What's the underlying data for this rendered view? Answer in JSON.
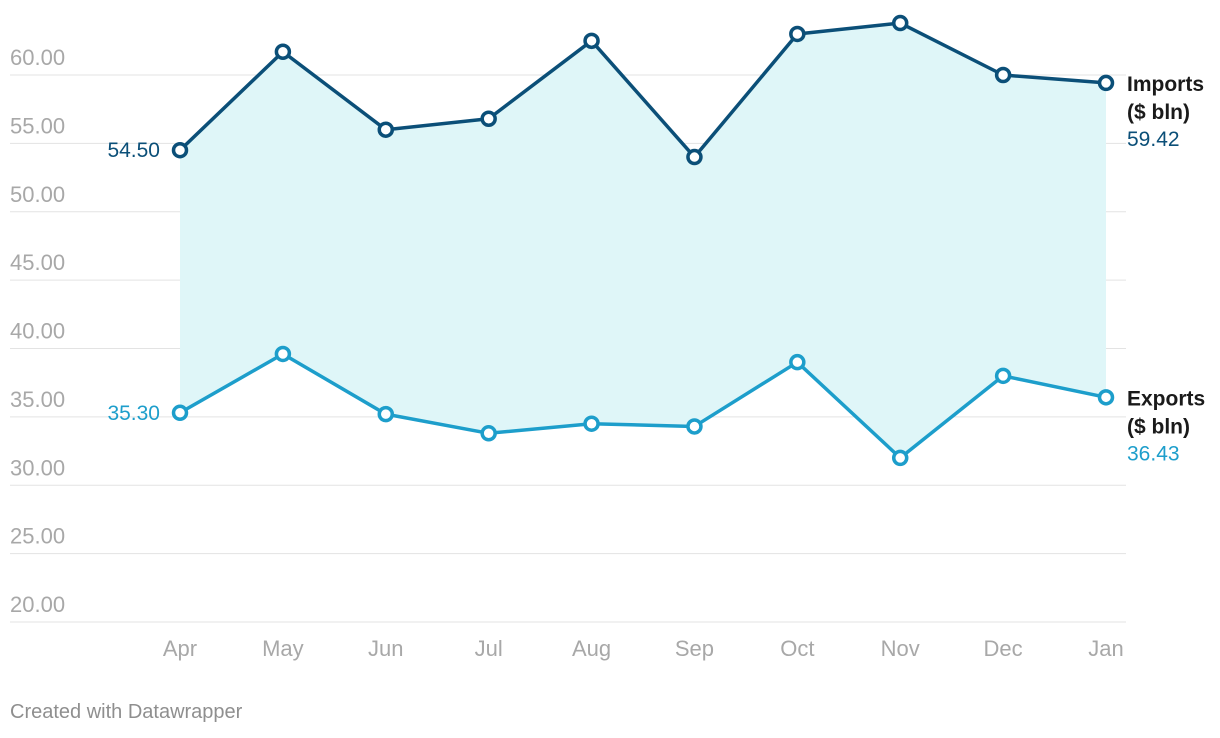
{
  "credit": "Created with Datawrapper",
  "colors": {
    "imports": "#0b4f78",
    "exports": "#1d9ecb",
    "area": "#dff6f8",
    "grid": "#e3e3e3",
    "tick": "#a8a8a8"
  },
  "chart_data": {
    "type": "line",
    "categories": [
      "Apr",
      "May",
      "Jun",
      "Jul",
      "Aug",
      "Sep",
      "Oct",
      "Nov",
      "Dec",
      "Jan"
    ],
    "ylim": [
      20,
      60
    ],
    "yticks": [
      "20.00",
      "25.00",
      "30.00",
      "35.00",
      "40.00",
      "45.00",
      "50.00",
      "55.00",
      "60.00"
    ],
    "grid": true,
    "fill_between": true,
    "series": [
      {
        "name": "Imports ($ bln)",
        "name_lines": [
          "Imports",
          "($ bln)"
        ],
        "values": [
          54.5,
          61.7,
          56.0,
          56.8,
          62.5,
          54.0,
          63.0,
          63.8,
          60.0,
          59.42
        ],
        "first_label": "54.50",
        "last_label": "59.42"
      },
      {
        "name": "Exports ($ bln)",
        "name_lines": [
          "Exports",
          "($ bln)"
        ],
        "values": [
          35.3,
          39.6,
          35.2,
          33.8,
          34.5,
          34.3,
          39.0,
          32.0,
          38.0,
          36.43
        ],
        "first_label": "35.30",
        "last_label": "36.43"
      }
    ]
  }
}
